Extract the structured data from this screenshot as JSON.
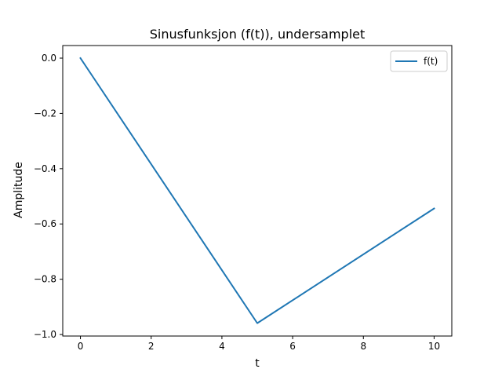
{
  "chart_data": {
    "type": "line",
    "title": "Sinusfunksjon (f(t)), undersamplet",
    "xlabel": "t",
    "ylabel": "Amplitude",
    "xlim": [
      -0.5,
      10.5
    ],
    "ylim": [
      -1.0055,
      0.0455
    ],
    "xticks": [
      0,
      2,
      4,
      6,
      8,
      10
    ],
    "xtick_labels": [
      "0",
      "2",
      "4",
      "6",
      "8",
      "10"
    ],
    "yticks": [
      0.0,
      -0.2,
      -0.4,
      -0.6,
      -0.8,
      -1.0
    ],
    "ytick_labels": [
      "0.0",
      "−0.2",
      "−0.4",
      "−0.6",
      "−0.8",
      "−1.0"
    ],
    "grid": false,
    "legend": "top-right",
    "series": [
      {
        "name": "f(t)",
        "color": "#1f77b4",
        "x": [
          0,
          5,
          10
        ],
        "y": [
          0.0,
          -0.959,
          -0.544
        ]
      }
    ]
  }
}
